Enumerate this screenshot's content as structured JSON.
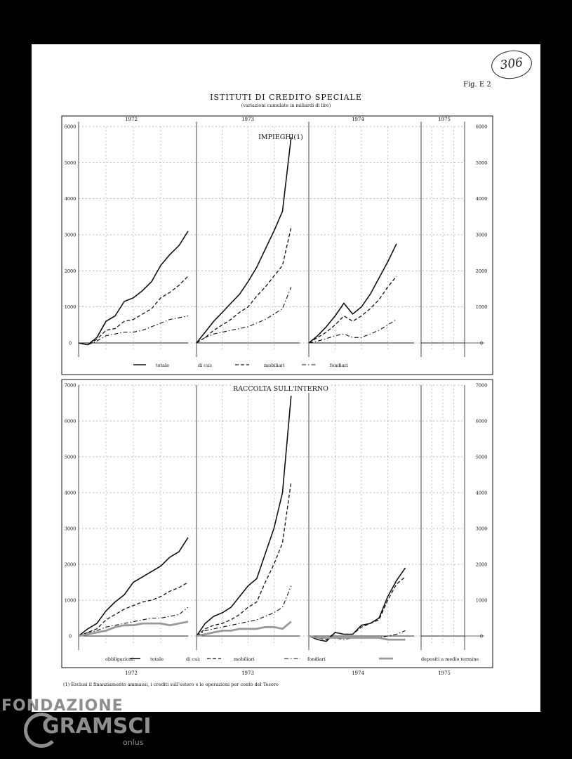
{
  "page": {
    "stamp": "306",
    "fig_label": "Fig. E 2",
    "title": "ISTITUTI DI CREDITO SPECIALE",
    "subtitle": "(variazioni cumulate in miliardi di lire)",
    "footnote": "(1) Esclusi il finanziamento ammassi, i crediti sull'estero e le operazioni per conto del Tesoro",
    "watermark": {
      "line1": "FONDAZIONE",
      "line2": "GRAMSCI",
      "line3": "onlus"
    }
  },
  "chart_data": [
    {
      "type": "line",
      "title": "IMPIEGHI(1)",
      "years": [
        "1972",
        "1973",
        "1974",
        "1975"
      ],
      "ylim": [
        0,
        6000
      ],
      "yticks": [
        "0",
        "1000",
        "2000",
        "3000",
        "4000",
        "5000",
        "6000"
      ],
      "grid": true,
      "legend": {
        "position": "bottom",
        "items": [
          {
            "label": "totale",
            "style": "solid"
          },
          {
            "label": "di cui:",
            "style": "none"
          },
          {
            "label": "mobiliari",
            "style": "dashed"
          },
          {
            "label": "fondiari",
            "style": "dashdot"
          }
        ]
      },
      "series": [
        {
          "name": "totale",
          "style": "solid",
          "segments": [
            {
              "year": "1972",
              "values": [
                0,
                -50,
                150,
                600,
                750,
                1150,
                1250,
                1450,
                1700,
                2150,
                2450,
                2700,
                3100
              ]
            },
            {
              "year": "1973",
              "values": [
                0,
                300,
                600,
                850,
                1100,
                1350,
                1700,
                2100,
                2600,
                3100,
                3650,
                5700
              ]
            },
            {
              "year": "1974",
              "values": [
                0,
                200,
                450,
                750,
                1100,
                800,
                1000,
                1350,
                1800,
                2250,
                2750
              ]
            }
          ]
        },
        {
          "name": "mobiliari",
          "style": "dashed",
          "segments": [
            {
              "year": "1972",
              "values": [
                0,
                -50,
                100,
                350,
                400,
                600,
                650,
                800,
                950,
                1250,
                1400,
                1600,
                1850
              ]
            },
            {
              "year": "1973",
              "values": [
                0,
                150,
                350,
                500,
                650,
                850,
                1000,
                1300,
                1550,
                1850,
                2150,
                3200
              ]
            },
            {
              "year": "1974",
              "values": [
                0,
                150,
                300,
                500,
                750,
                600,
                750,
                950,
                1200,
                1550,
                1850
              ]
            }
          ]
        },
        {
          "name": "fondiari",
          "style": "dashdot",
          "segments": [
            {
              "year": "1972",
              "values": [
                0,
                -50,
                50,
                200,
                250,
                300,
                300,
                350,
                450,
                550,
                650,
                700,
                750
              ]
            },
            {
              "year": "1973",
              "values": [
                0,
                150,
                250,
                300,
                350,
                400,
                450,
                550,
                650,
                800,
                950,
                1550
              ]
            },
            {
              "year": "1974",
              "values": [
                0,
                50,
                120,
                200,
                250,
                150,
                150,
                250,
                350,
                500,
                650
              ]
            }
          ]
        }
      ]
    },
    {
      "type": "line",
      "title": "RACCOLTA SULL'INTERNO",
      "years": [
        "1972",
        "1973",
        "1974",
        "1975"
      ],
      "ylim": [
        0,
        7000
      ],
      "yticks": [
        "0",
        "1000",
        "2000",
        "3000",
        "4000",
        "5000",
        "6000",
        "7000"
      ],
      "grid": true,
      "legend": {
        "position": "bottom",
        "items": [
          {
            "label": "obbligazioni:",
            "style": "none"
          },
          {
            "label": "totale",
            "style": "solid"
          },
          {
            "label": "di cui:",
            "style": "none"
          },
          {
            "label": "mobiliari",
            "style": "dashed"
          },
          {
            "label": "fondiari",
            "style": "dashdot"
          },
          {
            "label": "depositi a medio termine",
            "style": "gray"
          }
        ]
      },
      "series": [
        {
          "name": "totale",
          "style": "solid",
          "segments": [
            {
              "year": "1972",
              "values": [
                0,
                200,
                350,
                700,
                950,
                1150,
                1500,
                1650,
                1800,
                1950,
                2200,
                2350,
                2750
              ]
            },
            {
              "year": "1973",
              "values": [
                0,
                350,
                550,
                650,
                800,
                1100,
                1400,
                1600,
                2300,
                3000,
                4000,
                6700
              ]
            },
            {
              "year": "1974",
              "values": [
                0,
                -100,
                -150,
                100,
                50,
                50,
                300,
                350,
                500,
                1100,
                1550,
                1900
              ]
            }
          ]
        },
        {
          "name": "mobiliari",
          "style": "dashed",
          "segments": [
            {
              "year": "1972",
              "values": [
                0,
                100,
                200,
                450,
                600,
                750,
                850,
                950,
                1000,
                1100,
                1250,
                1350,
                1500
              ]
            },
            {
              "year": "1973",
              "values": [
                0,
                200,
                300,
                350,
                450,
                600,
                800,
                950,
                1500,
                2000,
                2600,
                4300
              ]
            },
            {
              "year": "1974",
              "values": [
                0,
                -50,
                -100,
                100,
                50,
                50,
                250,
                350,
                450,
                1000,
                1450,
                1650
              ]
            }
          ]
        },
        {
          "name": "fondiari",
          "style": "dashdot",
          "segments": [
            {
              "year": "1972",
              "values": [
                0,
                100,
                150,
                250,
                300,
                350,
                400,
                450,
                500,
                500,
                550,
                600,
                800
              ]
            },
            {
              "year": "1973",
              "values": [
                0,
                150,
                200,
                250,
                300,
                350,
                400,
                450,
                550,
                650,
                800,
                1400
              ]
            },
            {
              "year": "1974",
              "values": [
                0,
                -50,
                -50,
                -50,
                -100,
                -50,
                -50,
                -50,
                -50,
                0,
                50,
                150
              ]
            }
          ]
        },
        {
          "name": "depositi a medio termine",
          "style": "gray",
          "segments": [
            {
              "year": "1972",
              "values": [
                0,
                50,
                100,
                150,
                250,
                300,
                300,
                350,
                350,
                350,
                300,
                350,
                400
              ]
            },
            {
              "year": "1973",
              "values": [
                0,
                50,
                100,
                150,
                150,
                200,
                200,
                200,
                250,
                250,
                200,
                400
              ]
            },
            {
              "year": "1974",
              "values": [
                0,
                -50,
                -50,
                -50,
                -50,
                -50,
                -50,
                -50,
                -50,
                -100,
                -100,
                -100
              ]
            }
          ]
        }
      ]
    }
  ]
}
